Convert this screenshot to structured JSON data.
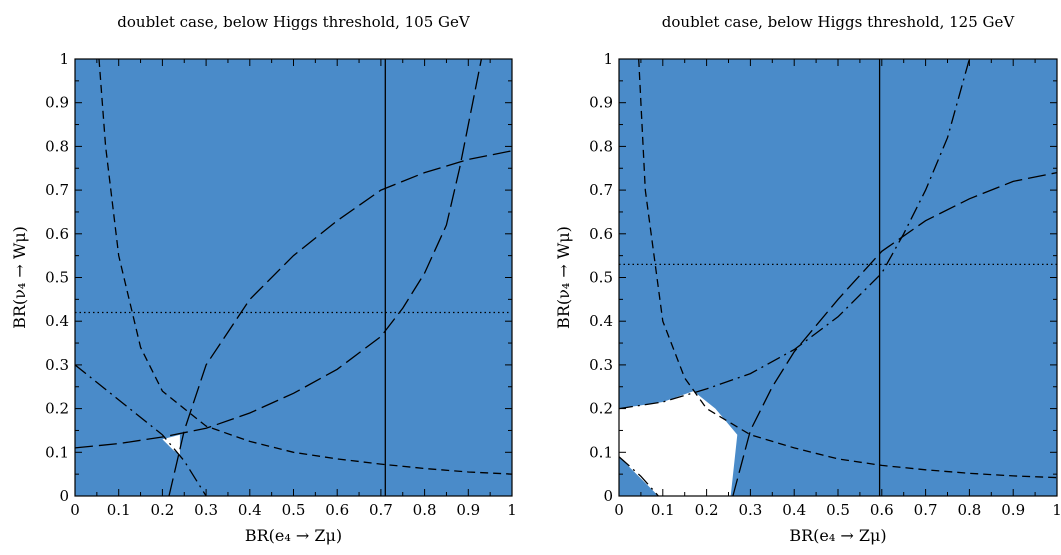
{
  "chart_data": [
    {
      "type": "region",
      "title": "doublet case, below Higgs threshold, 105 GeV",
      "xlabel": "BR(e₄ → Zμ)",
      "ylabel": "BR(ν₄ → Wμ)",
      "xlim": [
        0,
        1
      ],
      "ylim": [
        0,
        1
      ],
      "xticks": [
        "0",
        "0.1",
        "0.2",
        "0.3",
        "0.4",
        "0.5",
        "0.6",
        "0.7",
        "0.8",
        "0.9",
        "1"
      ],
      "yticks": [
        "0",
        "0.1",
        "0.2",
        "0.3",
        "0.4",
        "0.5",
        "0.6",
        "0.7",
        "0.8",
        "0.9",
        "1"
      ],
      "fill_color": "#4a8bc9",
      "allowed_region": [
        [
          0.2,
          0.13
        ],
        [
          0.24,
          0.14
        ],
        [
          0.24,
          0.095
        ],
        [
          0.225,
          0.105
        ]
      ],
      "curves": [
        {
          "style": "solid",
          "points": [
            [
              0.71,
              0
            ],
            [
              0.71,
              1
            ]
          ]
        },
        {
          "style": "dotted",
          "points": [
            [
              0,
              0.42
            ],
            [
              1,
              0.42
            ]
          ]
        },
        {
          "style": "dashed",
          "points": [
            [
              0.055,
              1
            ],
            [
              0.07,
              0.8
            ],
            [
              0.1,
              0.55
            ],
            [
              0.15,
              0.34
            ],
            [
              0.2,
              0.24
            ],
            [
              0.3,
              0.16
            ],
            [
              0.4,
              0.125
            ],
            [
              0.5,
              0.1
            ],
            [
              0.6,
              0.085
            ],
            [
              0.7,
              0.073
            ],
            [
              0.8,
              0.063
            ],
            [
              0.9,
              0.055
            ],
            [
              1,
              0.05
            ]
          ]
        },
        {
          "style": "long-dash",
          "points": [
            [
              0,
              0.11
            ],
            [
              0.1,
              0.12
            ],
            [
              0.2,
              0.135
            ],
            [
              0.3,
              0.155
            ],
            [
              0.4,
              0.19
            ],
            [
              0.5,
              0.235
            ],
            [
              0.6,
              0.29
            ],
            [
              0.7,
              0.365
            ],
            [
              0.75,
              0.43
            ],
            [
              0.8,
              0.51
            ],
            [
              0.85,
              0.62
            ],
            [
              0.88,
              0.75
            ],
            [
              0.91,
              0.9
            ],
            [
              0.93,
              1
            ]
          ]
        },
        {
          "style": "long-dash",
          "points": [
            [
              0.215,
              0
            ],
            [
              0.25,
              0.15
            ],
            [
              0.3,
              0.3
            ],
            [
              0.4,
              0.45
            ],
            [
              0.5,
              0.55
            ],
            [
              0.6,
              0.63
            ],
            [
              0.7,
              0.7
            ],
            [
              0.8,
              0.74
            ],
            [
              0.9,
              0.77
            ],
            [
              1,
              0.79
            ]
          ]
        },
        {
          "style": "dash-dot",
          "points": [
            [
              0,
              0.3
            ],
            [
              0.1,
              0.22
            ],
            [
              0.2,
              0.14
            ],
            [
              0.25,
              0.08
            ],
            [
              0.3,
              0
            ]
          ]
        }
      ]
    },
    {
      "type": "region",
      "title": "doublet case, below Higgs threshold, 125 GeV",
      "xlabel": "BR(e₄ → Zμ)",
      "ylabel": "BR(ν₄ → Wμ)",
      "xlim": [
        0,
        1
      ],
      "ylim": [
        0,
        1
      ],
      "xticks": [
        "0",
        "0.1",
        "0.2",
        "0.3",
        "0.4",
        "0.5",
        "0.6",
        "0.7",
        "0.8",
        "0.9",
        "1"
      ],
      "yticks": [
        "0",
        "0.1",
        "0.2",
        "0.3",
        "0.4",
        "0.5",
        "0.6",
        "0.7",
        "0.8",
        "0.9",
        "1"
      ],
      "fill_color": "#4a8bc9",
      "allowed_region": [
        [
          0,
          0.2
        ],
        [
          0.1,
          0.215
        ],
        [
          0.17,
          0.24
        ],
        [
          0.22,
          0.2
        ],
        [
          0.27,
          0.14
        ],
        [
          0.255,
          0
        ],
        [
          0.09,
          0
        ],
        [
          0,
          0.09
        ]
      ],
      "curves": [
        {
          "style": "solid",
          "points": [
            [
              0.595,
              0
            ],
            [
              0.595,
              1
            ]
          ]
        },
        {
          "style": "dotted",
          "points": [
            [
              0,
              0.53
            ],
            [
              1,
              0.53
            ]
          ]
        },
        {
          "style": "dashed",
          "points": [
            [
              0.045,
              1
            ],
            [
              0.06,
              0.7
            ],
            [
              0.1,
              0.4
            ],
            [
              0.15,
              0.27
            ],
            [
              0.2,
              0.2
            ],
            [
              0.3,
              0.14
            ],
            [
              0.4,
              0.11
            ],
            [
              0.5,
              0.085
            ],
            [
              0.6,
              0.07
            ],
            [
              0.7,
              0.06
            ],
            [
              0.8,
              0.052
            ],
            [
              0.9,
              0.046
            ],
            [
              1,
              0.042
            ]
          ]
        },
        {
          "style": "dash-dot",
          "points": [
            [
              0,
              0.2
            ],
            [
              0.1,
              0.215
            ],
            [
              0.2,
              0.245
            ],
            [
              0.3,
              0.28
            ],
            [
              0.4,
              0.335
            ],
            [
              0.5,
              0.41
            ],
            [
              0.6,
              0.51
            ],
            [
              0.65,
              0.6
            ],
            [
              0.7,
              0.7
            ],
            [
              0.75,
              0.82
            ],
            [
              0.8,
              1
            ]
          ]
        },
        {
          "style": "long-dash",
          "points": [
            [
              0.26,
              0
            ],
            [
              0.3,
              0.15
            ],
            [
              0.35,
              0.25
            ],
            [
              0.4,
              0.33
            ],
            [
              0.5,
              0.45
            ],
            [
              0.6,
              0.56
            ],
            [
              0.7,
              0.63
            ],
            [
              0.8,
              0.68
            ],
            [
              0.9,
              0.72
            ],
            [
              1,
              0.74
            ]
          ]
        },
        {
          "style": "dash-dot",
          "points": [
            [
              0,
              0.09
            ],
            [
              0.05,
              0.045
            ],
            [
              0.09,
              0
            ]
          ]
        }
      ]
    }
  ]
}
